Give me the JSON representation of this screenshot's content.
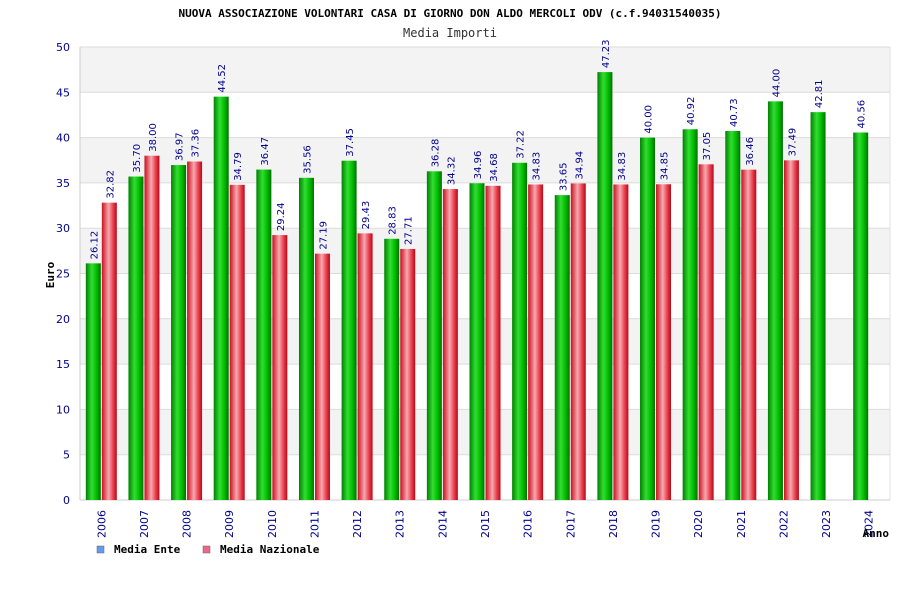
{
  "chart_data": {
    "type": "bar",
    "title": "NUOVA ASSOCIAZIONE VOLONTARI CASA DI GIORNO DON ALDO MERCOLI ODV (c.f.94031540035)",
    "subtitle": "Media Importi",
    "ylabel": "Euro",
    "xlabel": "Anno",
    "ylim": [
      0,
      50
    ],
    "yticks": [
      0,
      5,
      10,
      15,
      20,
      25,
      30,
      35,
      40,
      45,
      50
    ],
    "grid": true,
    "legend_position": "bottom-left",
    "categories": [
      "2006",
      "2007",
      "2008",
      "2009",
      "2010",
      "2011",
      "2012",
      "2013",
      "2014",
      "2015",
      "2016",
      "2017",
      "2018",
      "2019",
      "2020",
      "2021",
      "2022",
      "2023",
      "2024"
    ],
    "series": [
      {
        "name": "Media Ente",
        "color": "#00b400",
        "legend_color": "#6699ee",
        "values": [
          26.12,
          35.7,
          36.97,
          44.52,
          36.47,
          35.56,
          37.45,
          28.83,
          36.28,
          34.96,
          37.22,
          33.65,
          47.23,
          40.0,
          40.92,
          40.73,
          44.0,
          42.81,
          40.56
        ],
        "labels": [
          "26.12",
          "35.70",
          "36.97",
          "44.52",
          "36.47",
          "35.56",
          "37.45",
          "28.83",
          "36.28",
          "34.96",
          "37.22",
          "33.65",
          "47.23",
          "40.00",
          "40.92",
          "40.73",
          "44.00",
          "42.81",
          "40.56"
        ]
      },
      {
        "name": "Media Nazionale",
        "color": "#e8202e",
        "legend_color": "#ee6688",
        "values": [
          32.82,
          38.0,
          37.36,
          34.79,
          29.24,
          27.19,
          29.43,
          27.71,
          34.32,
          34.68,
          34.83,
          34.94,
          34.83,
          34.85,
          37.05,
          36.46,
          37.49,
          null,
          null
        ],
        "labels": [
          "32.82",
          "38.00",
          "37.36",
          "34.79",
          "29.24",
          "27.19",
          "29.43",
          "27.71",
          "34.32",
          "34.68",
          "34.83",
          "34.94",
          "34.83",
          "34.85",
          "37.05",
          "36.46",
          "37.49",
          "",
          ""
        ]
      }
    ]
  }
}
